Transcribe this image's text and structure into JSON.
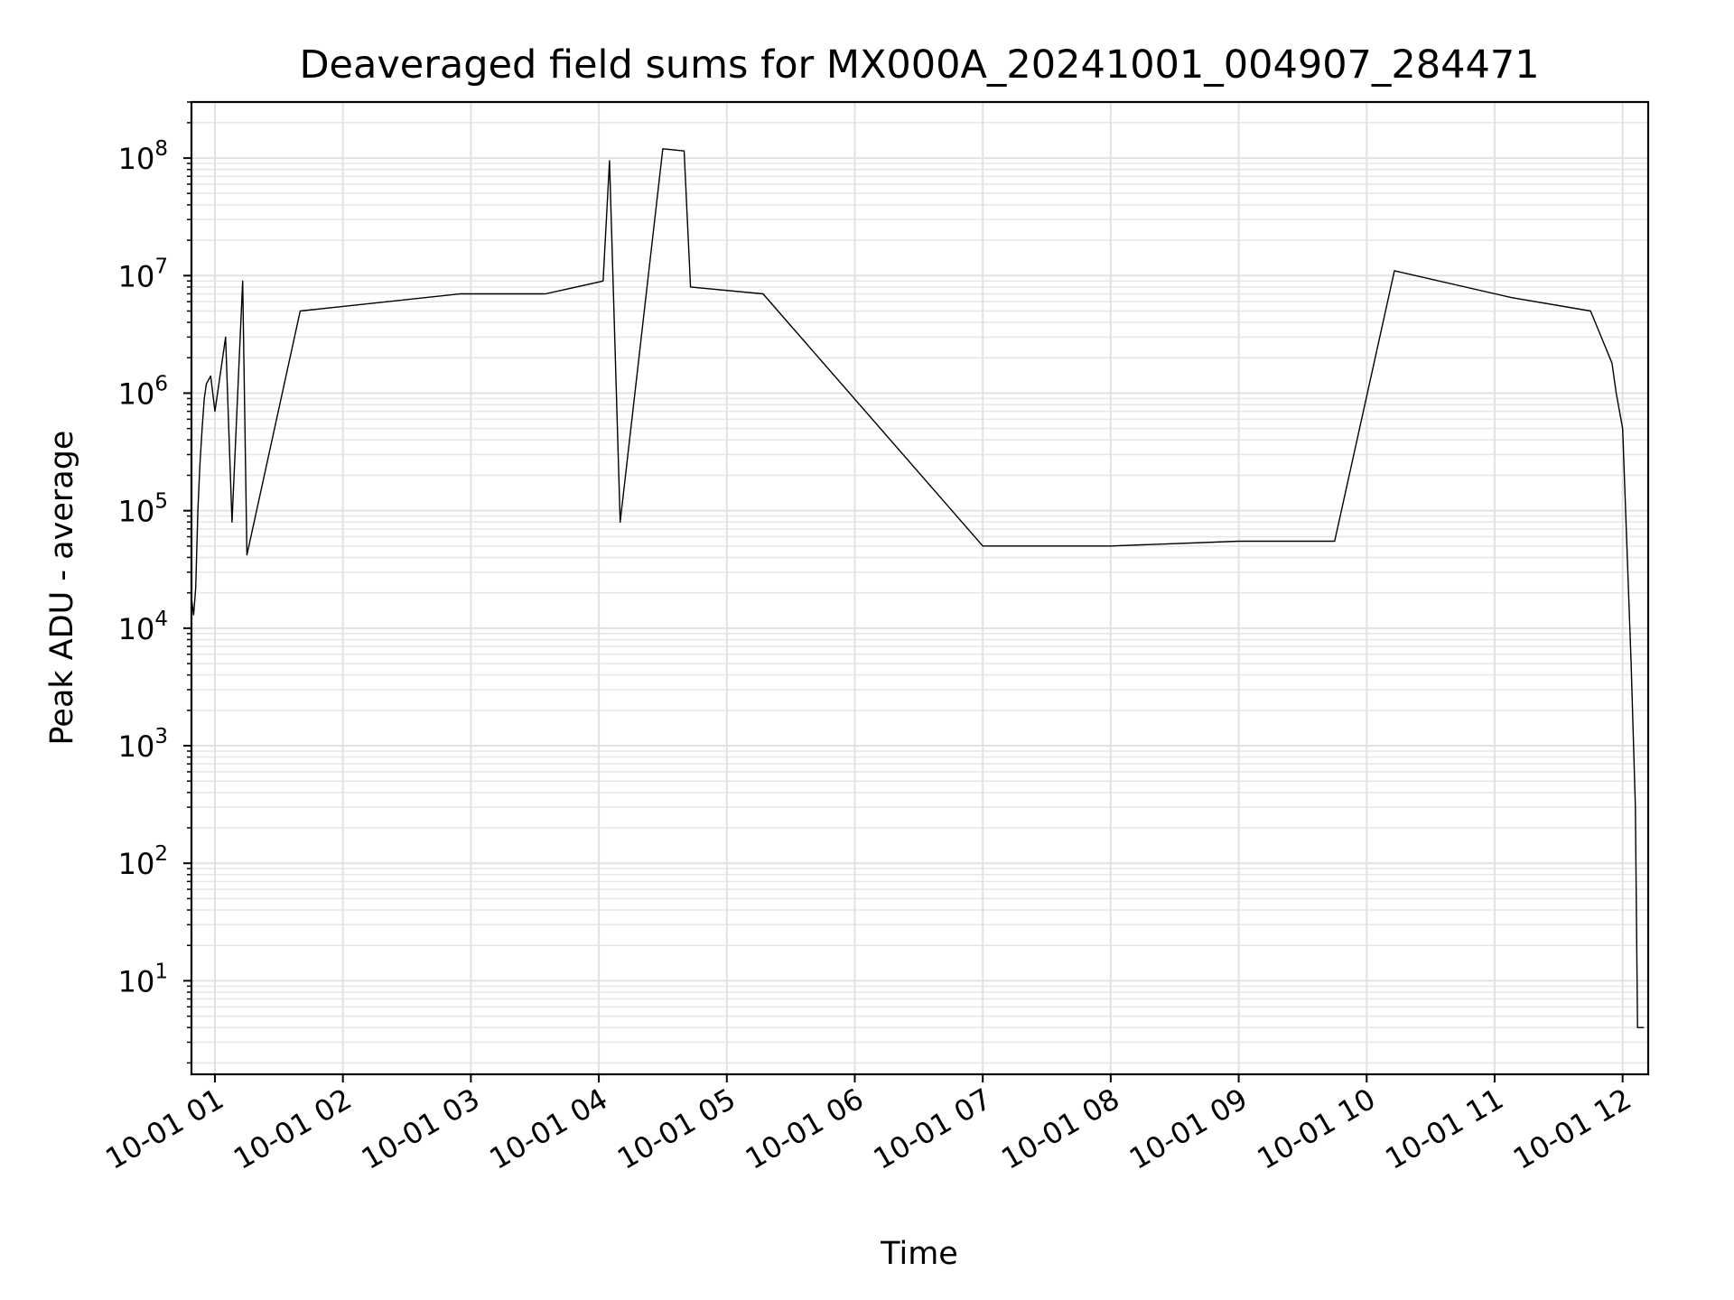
{
  "chart_data": {
    "type": "line",
    "title": "Deaveraged field sums for MX000A_20241001_004907_284471",
    "xlabel": "Time",
    "ylabel": "Peak ADU - average",
    "y_scale": "log",
    "ylim": [
      1.6,
      300000000
    ],
    "xlim": [
      "2024-10-01 00:49",
      "2024-10-01 12:12"
    ],
    "grid": "on (major and minor)",
    "line_color": "#000000",
    "x_ticks": [
      {
        "value": "2024-10-01 01:00",
        "label": "10-01 01"
      },
      {
        "value": "2024-10-01 02:00",
        "label": "10-01 02"
      },
      {
        "value": "2024-10-01 03:00",
        "label": "10-01 03"
      },
      {
        "value": "2024-10-01 04:00",
        "label": "10-01 04"
      },
      {
        "value": "2024-10-01 05:00",
        "label": "10-01 05"
      },
      {
        "value": "2024-10-01 06:00",
        "label": "10-01 06"
      },
      {
        "value": "2024-10-01 07:00",
        "label": "10-01 07"
      },
      {
        "value": "2024-10-01 08:00",
        "label": "10-01 08"
      },
      {
        "value": "2024-10-01 09:00",
        "label": "10-01 09"
      },
      {
        "value": "2024-10-01 10:00",
        "label": "10-01 10"
      },
      {
        "value": "2024-10-01 11:00",
        "label": "10-01 11"
      },
      {
        "value": "2024-10-01 12:00",
        "label": "10-01 12"
      }
    ],
    "y_ticks": [
      {
        "value": 10,
        "base": "10",
        "exp": "1"
      },
      {
        "value": 100,
        "base": "10",
        "exp": "2"
      },
      {
        "value": 1000,
        "base": "10",
        "exp": "3"
      },
      {
        "value": 10000,
        "base": "10",
        "exp": "4"
      },
      {
        "value": 100000,
        "base": "10",
        "exp": "5"
      },
      {
        "value": 1000000,
        "base": "10",
        "exp": "6"
      },
      {
        "value": 10000000,
        "base": "10",
        "exp": "7"
      },
      {
        "value": 100000000,
        "base": "10",
        "exp": "8"
      }
    ],
    "series": [
      {
        "points": [
          [
            "2024-10-01 00:49",
            18000
          ],
          [
            "2024-10-01 00:50",
            13000
          ],
          [
            "2024-10-01 00:51",
            22000
          ],
          [
            "2024-10-01 00:52",
            100000
          ],
          [
            "2024-10-01 00:53",
            250000
          ],
          [
            "2024-10-01 00:54",
            500000
          ],
          [
            "2024-10-01 00:55",
            900000
          ],
          [
            "2024-10-01 00:56",
            1200000
          ],
          [
            "2024-10-01 00:58",
            1400000
          ],
          [
            "2024-10-01 01:00",
            700000
          ],
          [
            "2024-10-01 01:05",
            3000000
          ],
          [
            "2024-10-01 01:08",
            80000
          ],
          [
            "2024-10-01 01:13",
            9000000
          ],
          [
            "2024-10-01 01:15",
            42000
          ],
          [
            "2024-10-01 01:40",
            5000000
          ],
          [
            "2024-10-01 02:55",
            7000000
          ],
          [
            "2024-10-01 03:35",
            7000000
          ],
          [
            "2024-10-01 04:02",
            9000000
          ],
          [
            "2024-10-01 04:05",
            95000000
          ],
          [
            "2024-10-01 04:10",
            80000
          ],
          [
            "2024-10-01 04:30",
            120000000
          ],
          [
            "2024-10-01 04:40",
            115000000
          ],
          [
            "2024-10-01 04:43",
            8000000
          ],
          [
            "2024-10-01 05:17",
            7000000
          ],
          [
            "2024-10-01 07:00",
            50000
          ],
          [
            "2024-10-01 08:00",
            50000
          ],
          [
            "2024-10-01 09:00",
            55000
          ],
          [
            "2024-10-01 09:45",
            55000
          ],
          [
            "2024-10-01 10:13",
            11000000
          ],
          [
            "2024-10-01 11:08",
            6500000
          ],
          [
            "2024-10-01 11:45",
            5000000
          ],
          [
            "2024-10-01 11:55",
            1800000
          ],
          [
            "2024-10-01 11:57",
            1000000
          ],
          [
            "2024-10-01 12:00",
            500000
          ],
          [
            "2024-10-01 12:02",
            50000
          ],
          [
            "2024-10-01 12:04",
            5000
          ],
          [
            "2024-10-01 12:06",
            300
          ],
          [
            "2024-10-01 12:07",
            4
          ],
          [
            "2024-10-01 12:10",
            4
          ]
        ]
      }
    ]
  }
}
